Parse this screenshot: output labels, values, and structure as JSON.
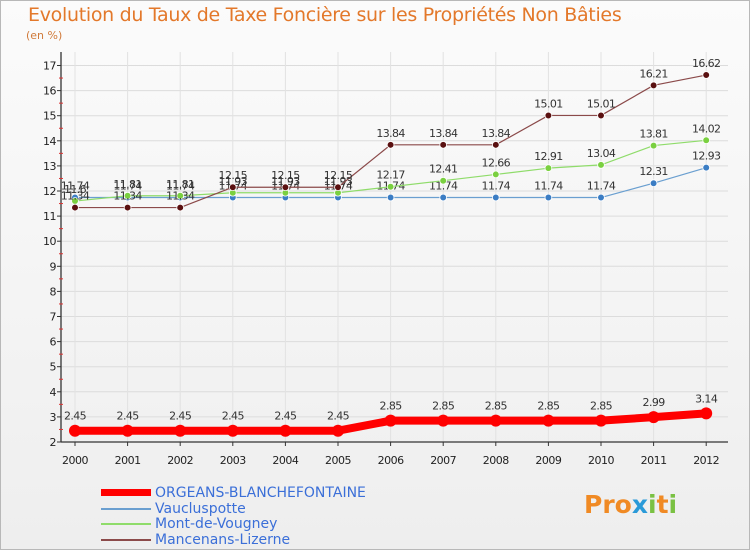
{
  "title": "Evolution du Taux de Taxe Foncière sur les Propriétés Non Bâties",
  "unit": "(en %)",
  "logo": {
    "text": "Proxiti",
    "colors": [
      "#f08a24",
      "#2a9ad8",
      "#7ac143"
    ]
  },
  "chart_data": {
    "type": "line",
    "title": "Evolution du Taux de Taxe Foncière sur les Propriétés Non Bâties",
    "ylabel": "(en %)",
    "xlabel": "",
    "x": [
      "2000",
      "2001",
      "2002",
      "2003",
      "2004",
      "2005",
      "2006",
      "2007",
      "2008",
      "2009",
      "2010",
      "2011",
      "2012"
    ],
    "ylim": [
      2,
      17
    ],
    "yticks": [
      "2",
      "3",
      "4",
      "5",
      "6",
      "7",
      "8",
      "9",
      "10",
      "11",
      "12",
      "13",
      "14",
      "15",
      "16",
      "17"
    ],
    "series": [
      {
        "name": "ORGEANS-BLANCHEFONTAINE",
        "color": "#ff0000",
        "width": 8,
        "values": [
          2.45,
          2.45,
          2.45,
          2.45,
          2.45,
          2.45,
          2.85,
          2.85,
          2.85,
          2.85,
          2.85,
          2.99,
          3.14
        ],
        "labels": [
          "2.45",
          "2.45",
          "2.45",
          "2.45",
          "2.45",
          "2.45",
          "2.85",
          "2.85",
          "2.85",
          "2.85",
          "2.85",
          "2.99",
          "3.14"
        ]
      },
      {
        "name": "Vaucluspotte",
        "color": "#6a9fd0",
        "dot": "#3b7dc4",
        "width": 1.2,
        "values": [
          11.74,
          11.74,
          11.74,
          11.74,
          11.74,
          11.74,
          11.74,
          11.74,
          11.74,
          11.74,
          11.74,
          12.31,
          12.93
        ],
        "labels": [
          "11.74",
          "11.74",
          "11.74",
          "11.74",
          "11.74",
          "11.74",
          "11.74",
          "11.74",
          "11.74",
          "11.74",
          "11.74",
          "12.31",
          "12.93"
        ]
      },
      {
        "name": "Mont-de-Vougney",
        "color": "#8fdc6a",
        "dot": "#7ad040",
        "width": 1.2,
        "values": [
          11.6,
          11.81,
          11.81,
          11.93,
          11.93,
          11.93,
          12.17,
          12.41,
          12.66,
          12.91,
          13.04,
          13.81,
          14.02
        ],
        "labels": [
          "11.6",
          "11.81",
          "11.81",
          "11.93",
          "11.93",
          "11.93",
          "12.17",
          "12.41",
          "12.66",
          "12.91",
          "13.04",
          "13.81",
          "14.02"
        ]
      },
      {
        "name": "Mancenans-Lizerne",
        "color": "#8b4a4a",
        "dot": "#5a1010",
        "width": 1.2,
        "values": [
          11.34,
          11.34,
          11.34,
          12.15,
          12.15,
          12.15,
          13.84,
          13.84,
          13.84,
          15.01,
          15.01,
          16.21,
          16.62
        ],
        "labels": [
          "11.34",
          "11.34",
          "11.34",
          "12.15",
          "12.15",
          "12.15",
          "13.84",
          "13.84",
          "13.84",
          "15.01",
          "15.01",
          "16.21",
          "16.62"
        ]
      }
    ],
    "legend": [
      {
        "name": "ORGEANS-BLANCHEFONTAINE",
        "color": "#ff0000",
        "text_color": "#3b6fd8"
      },
      {
        "name": "Vaucluspotte",
        "color": "#6a9fd0",
        "text_color": "#3b6fd8"
      },
      {
        "name": "Mont-de-Vougney",
        "color": "#8fdc6a",
        "text_color": "#3b6fd8"
      },
      {
        "name": "Mancenans-Lizerne",
        "color": "#8b4a4a",
        "text_color": "#3b6fd8"
      }
    ]
  }
}
